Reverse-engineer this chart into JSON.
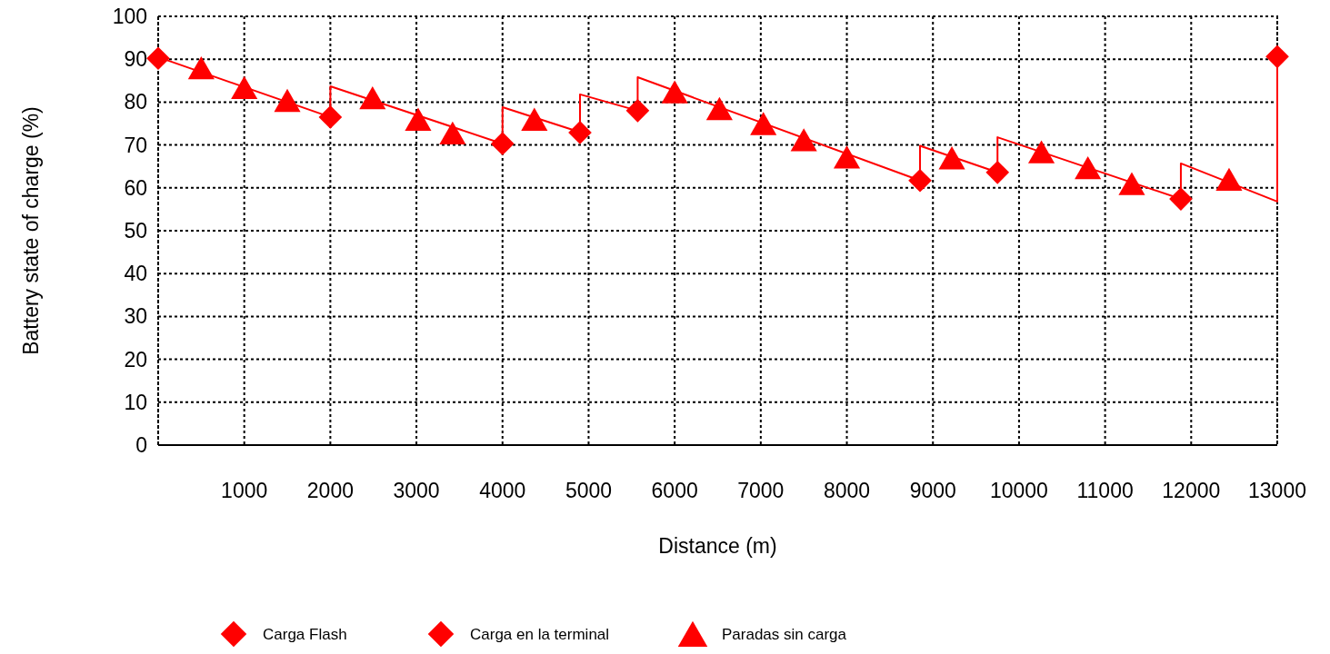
{
  "chart_data": {
    "type": "line",
    "xlabel": "Distance (m)",
    "ylabel": "Battery state of charge (%)",
    "xlim": [
      0,
      13000
    ],
    "ylim": [
      0,
      100
    ],
    "xticks": [
      {
        "value": 0,
        "label": null
      },
      1000,
      2000,
      3000,
      4000,
      5000,
      6000,
      7000,
      8000,
      9000,
      10000,
      11000,
      12000,
      13000
    ],
    "yticks": [
      0,
      10,
      20,
      30,
      40,
      50,
      60,
      70,
      80,
      90,
      100
    ],
    "grid": true,
    "legend": "bottom",
    "line_style": "solid",
    "series": [
      {
        "color": "#ff0000",
        "marker": "none",
        "x": [
          0,
          2000,
          2000,
          4000,
          4000,
          4900,
          4900,
          5570,
          5570,
          8850,
          8850,
          9750,
          9750,
          11880,
          11880,
          13000,
          13000
        ],
        "values": [
          90.5,
          76.5,
          83.7,
          70.3,
          78.8,
          73,
          81.8,
          78,
          85.8,
          61.7,
          69.8,
          63.6,
          71.8,
          57.4,
          65.7,
          56.8,
          90.5
        ]
      },
      {
        "type": "scatter",
        "name": "Carga Flash",
        "color": "#ff0000",
        "marker": "diamond",
        "x": [
          2000,
          4000,
          4900,
          5570,
          8850,
          9750,
          11880
        ],
        "values": [
          76.5,
          70.3,
          72.9,
          78,
          61.7,
          63.6,
          57.4
        ]
      },
      {
        "type": "scatter",
        "name": "Carga en la terminal",
        "color": "#ff0000",
        "marker": "diamond",
        "x": [
          0,
          13000
        ],
        "values": [
          90.2,
          90.6
        ]
      },
      {
        "type": "scatter",
        "name": "Paradas sin carga",
        "color": "#ff0000",
        "marker": "triangle",
        "x": [
          500,
          1000,
          1500,
          2490,
          3020,
          3420,
          4370,
          6000,
          6520,
          7030,
          7500,
          8000,
          9220,
          10260,
          10800,
          11310,
          12440
        ],
        "values": [
          88,
          83.4,
          80.4,
          81,
          76,
          72.8,
          76,
          82.4,
          78.5,
          75,
          71.2,
          67.2,
          67,
          68.4,
          64.7,
          61,
          62
        ]
      }
    ]
  }
}
